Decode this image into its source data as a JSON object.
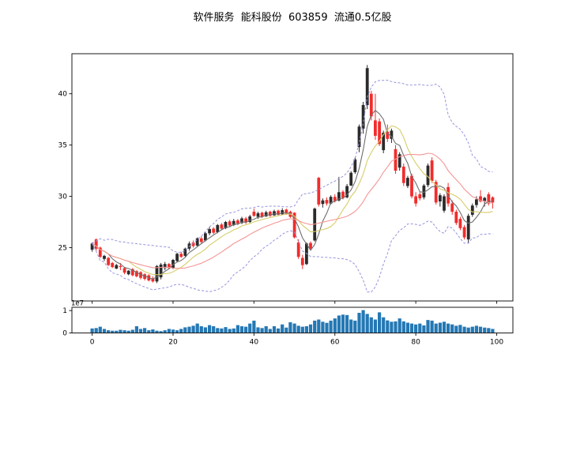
{
  "title": "软件服务  能科股份  603859  流通0.5亿股",
  "chart_data": {
    "type": "candlestick",
    "title": "软件服务  能科股份  603859  流通0.5亿股",
    "panels": [
      "price",
      "volume"
    ],
    "x_axis": {
      "ticks": [
        0,
        20,
        40,
        60,
        80,
        100
      ],
      "range": [
        -5,
        104
      ]
    },
    "price_axis": {
      "ticks": [
        25,
        30,
        35,
        40
      ],
      "range": [
        19.8,
        43.9
      ]
    },
    "volume_axis": {
      "ticks": [
        0,
        1
      ],
      "offset_label": "1e7",
      "range_1e7": [
        0,
        1.147
      ]
    },
    "grid": false,
    "legend": "none",
    "colors": {
      "up_candle": "#2b2b2b",
      "down_candle": "#f22c2c",
      "ma5": "#6f6f6f",
      "ma10": "#d6cd6a",
      "ma20": "#f59595",
      "bollinger": "#9494de",
      "volume_bar": "#2478b4",
      "axis": "#1a1a1a"
    },
    "overlays": {
      "ma": [
        {
          "name": "MA5",
          "window": 5
        },
        {
          "name": "MA10",
          "window": 10
        },
        {
          "name": "MA20",
          "window": 20
        }
      ],
      "bollinger": {
        "window": 20,
        "k": 2,
        "style": "dashed"
      }
    },
    "ohlc": [
      [
        24.8,
        25.5,
        24.6,
        25.4
      ],
      [
        25.8,
        25.9,
        24.7,
        24.9
      ],
      [
        25.0,
        25.1,
        24.0,
        24.1
      ],
      [
        23.9,
        24.3,
        23.7,
        24.2
      ],
      [
        24.0,
        24.1,
        23.2,
        23.3
      ],
      [
        23.5,
        23.6,
        23.0,
        23.1
      ],
      [
        22.95,
        23.4,
        22.9,
        23.3
      ],
      [
        23.2,
        23.5,
        22.8,
        23.1
      ],
      [
        23.0,
        23.1,
        22.4,
        22.55
      ],
      [
        22.4,
        22.8,
        22.3,
        22.75
      ],
      [
        22.9,
        23.0,
        22.2,
        22.3
      ],
      [
        22.7,
        22.8,
        22.1,
        22.2
      ],
      [
        22.6,
        22.7,
        21.9,
        22.05
      ],
      [
        22.4,
        22.5,
        21.8,
        21.95
      ],
      [
        22.3,
        22.4,
        21.7,
        21.8
      ],
      [
        22.0,
        22.2,
        21.6,
        21.7
      ],
      [
        21.7,
        23.3,
        21.55,
        23.2
      ],
      [
        22.1,
        23.5,
        21.9,
        23.35
      ],
      [
        23.0,
        23.6,
        22.8,
        23.4
      ],
      [
        23.4,
        23.5,
        22.9,
        23.0
      ],
      [
        23.0,
        23.9,
        22.9,
        23.8
      ],
      [
        23.7,
        24.5,
        23.6,
        24.4
      ],
      [
        24.4,
        24.6,
        24.0,
        24.1
      ],
      [
        24.2,
        25.0,
        24.1,
        24.9
      ],
      [
        24.9,
        25.6,
        24.7,
        25.4
      ],
      [
        25.5,
        25.7,
        25.0,
        25.15
      ],
      [
        25.2,
        26.0,
        25.1,
        25.9
      ],
      [
        25.9,
        26.1,
        25.4,
        25.55
      ],
      [
        25.7,
        26.5,
        25.6,
        26.4
      ],
      [
        26.4,
        27.0,
        26.2,
        26.8
      ],
      [
        26.85,
        27.0,
        26.3,
        26.45
      ],
      [
        26.5,
        27.3,
        26.4,
        27.2
      ],
      [
        27.25,
        27.4,
        26.7,
        26.85
      ],
      [
        26.9,
        27.6,
        26.8,
        27.5
      ],
      [
        27.55,
        27.7,
        27.0,
        27.15
      ],
      [
        27.2,
        27.8,
        27.1,
        27.6
      ],
      [
        27.65,
        27.8,
        27.2,
        27.35
      ],
      [
        27.4,
        28.0,
        27.3,
        27.85
      ],
      [
        27.85,
        28.0,
        27.3,
        27.45
      ],
      [
        27.5,
        28.2,
        27.4,
        28.05
      ],
      [
        28.5,
        28.8,
        28.0,
        28.1
      ],
      [
        28.0,
        28.5,
        27.8,
        28.35
      ],
      [
        28.4,
        28.5,
        27.9,
        28.0
      ],
      [
        28.05,
        28.6,
        28.0,
        28.45
      ],
      [
        28.5,
        28.6,
        28.0,
        28.1
      ],
      [
        28.15,
        28.7,
        28.1,
        28.55
      ],
      [
        28.6,
        28.7,
        28.1,
        28.2
      ],
      [
        28.25,
        28.85,
        28.2,
        28.65
      ],
      [
        28.7,
        28.8,
        28.2,
        28.3
      ],
      [
        28.5,
        28.6,
        27.9,
        28.0
      ],
      [
        28.4,
        28.45,
        25.9,
        26.0
      ],
      [
        25.5,
        25.8,
        23.9,
        24.1
      ],
      [
        24.0,
        24.3,
        22.9,
        23.3
      ],
      [
        23.4,
        25.5,
        23.3,
        25.4
      ],
      [
        25.45,
        25.6,
        24.7,
        24.9
      ],
      [
        25.7,
        28.9,
        25.6,
        28.8
      ],
      [
        31.8,
        31.9,
        29.0,
        29.2
      ],
      [
        29.25,
        29.8,
        28.9,
        29.6
      ],
      [
        29.65,
        29.9,
        29.1,
        29.3
      ],
      [
        29.3,
        30.1,
        29.2,
        29.95
      ],
      [
        29.95,
        30.2,
        29.4,
        29.55
      ],
      [
        29.6,
        31.9,
        29.5,
        30.4
      ],
      [
        30.45,
        30.6,
        29.7,
        29.85
      ],
      [
        29.9,
        31.2,
        29.8,
        31.0
      ],
      [
        31.05,
        32.45,
        31.0,
        32.3
      ],
      [
        32.35,
        33.8,
        32.2,
        33.6
      ],
      [
        34.8,
        37.0,
        34.3,
        36.8
      ],
      [
        36.6,
        39.2,
        36.1,
        38.9
      ],
      [
        38.9,
        42.8,
        38.5,
        42.5
      ],
      [
        40.0,
        40.3,
        37.4,
        37.8
      ],
      [
        37.4,
        40.0,
        35.5,
        35.9
      ],
      [
        37.3,
        37.6,
        34.9,
        35.1
      ],
      [
        34.5,
        36.4,
        34.2,
        36.2
      ],
      [
        36.3,
        37.0,
        35.3,
        35.6
      ],
      [
        35.6,
        36.6,
        35.2,
        36.4
      ],
      [
        34.6,
        35.0,
        32.2,
        32.5
      ],
      [
        32.8,
        34.3,
        32.5,
        34.1
      ],
      [
        32.9,
        33.2,
        31.0,
        31.3
      ],
      [
        31.0,
        32.0,
        30.8,
        31.8
      ],
      [
        32.0,
        32.2,
        29.8,
        30.0
      ],
      [
        30.0,
        30.4,
        29.0,
        29.3
      ],
      [
        30.2,
        30.4,
        29.6,
        29.8
      ],
      [
        29.9,
        31.2,
        29.7,
        31.05
      ],
      [
        31.1,
        33.2,
        30.9,
        33.0
      ],
      [
        33.5,
        33.8,
        31.3,
        31.5
      ],
      [
        31.4,
        31.6,
        29.2,
        29.4
      ],
      [
        29.5,
        30.3,
        29.0,
        30.1
      ],
      [
        28.6,
        30.2,
        28.4,
        30.0
      ],
      [
        30.9,
        31.3,
        29.0,
        29.3
      ],
      [
        29.3,
        29.6,
        28.2,
        28.5
      ],
      [
        28.5,
        28.7,
        27.2,
        27.4
      ],
      [
        27.8,
        28.0,
        26.7,
        26.9
      ],
      [
        27.0,
        27.2,
        25.8,
        26.0
      ],
      [
        25.8,
        28.3,
        25.4,
        28.1
      ],
      [
        28.2,
        29.3,
        28.0,
        29.1
      ],
      [
        29.15,
        30.0,
        28.9,
        29.7
      ],
      [
        30.0,
        30.6,
        29.4,
        29.5
      ],
      [
        29.55,
        29.95,
        29.0,
        29.85
      ],
      [
        30.2,
        30.4,
        29.1,
        29.3
      ],
      [
        29.9,
        30.0,
        28.8,
        29.4
      ]
    ],
    "volume_1e7": [
      0.2,
      0.22,
      0.28,
      0.18,
      0.12,
      0.1,
      0.1,
      0.14,
      0.12,
      0.1,
      0.14,
      0.3,
      0.18,
      0.22,
      0.12,
      0.16,
      0.1,
      0.08,
      0.12,
      0.18,
      0.15,
      0.12,
      0.18,
      0.25,
      0.28,
      0.32,
      0.42,
      0.3,
      0.25,
      0.35,
      0.3,
      0.22,
      0.2,
      0.26,
      0.18,
      0.2,
      0.35,
      0.3,
      0.28,
      0.42,
      0.55,
      0.25,
      0.22,
      0.3,
      0.18,
      0.3,
      0.2,
      0.38,
      0.24,
      0.48,
      0.42,
      0.32,
      0.28,
      0.3,
      0.38,
      0.55,
      0.6,
      0.5,
      0.45,
      0.55,
      0.65,
      0.78,
      0.82,
      0.8,
      0.6,
      0.55,
      0.9,
      1.02,
      0.85,
      0.7,
      0.6,
      0.92,
      0.7,
      0.56,
      0.5,
      0.52,
      0.65,
      0.52,
      0.46,
      0.42,
      0.38,
      0.42,
      0.34,
      0.58,
      0.55,
      0.42,
      0.46,
      0.5,
      0.42,
      0.38,
      0.32,
      0.36,
      0.28,
      0.24,
      0.28,
      0.32,
      0.28,
      0.24,
      0.22,
      0.18
    ]
  }
}
